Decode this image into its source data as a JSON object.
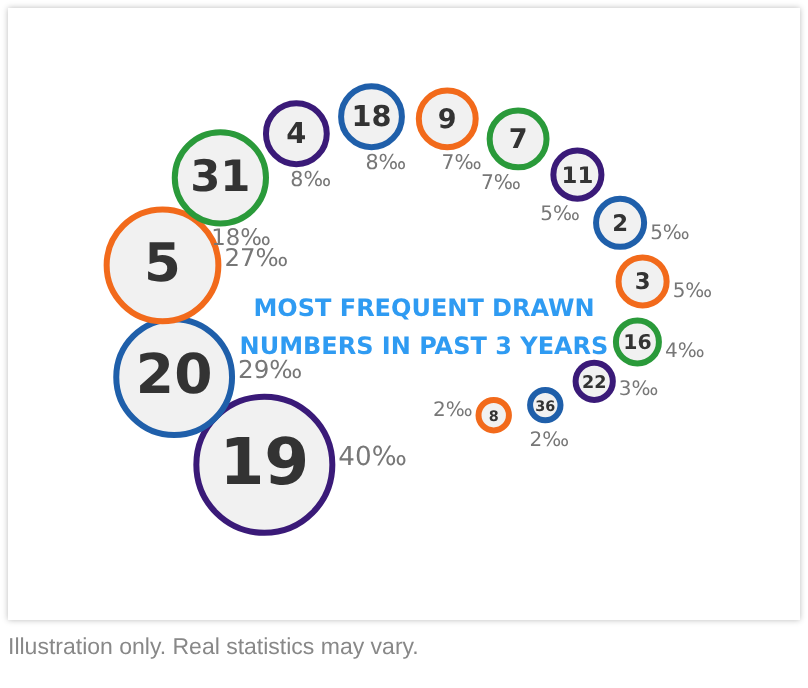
{
  "chart_data": {
    "type": "other",
    "title": "MOST FREQUENT DRAWN NUMBERS IN PAST 3 YEARS",
    "categories": [
      "19",
      "20",
      "5",
      "31",
      "4",
      "18",
      "9",
      "7",
      "11",
      "2",
      "3",
      "16",
      "22",
      "36",
      "8"
    ],
    "values": [
      40,
      29,
      27,
      18,
      8,
      8,
      7,
      7,
      5,
      5,
      5,
      4,
      3,
      2,
      2
    ],
    "value_labels": [
      "40‰",
      "29‰",
      "27‰",
      "18‰",
      "8‰",
      "8‰",
      "7‰",
      "7‰",
      "5‰",
      "5‰",
      "5‰",
      "4‰",
      "3‰",
      "2‰",
      "2‰"
    ],
    "colors": [
      "#3a1a78",
      "#1f5faa",
      "#f26a1b",
      "#2a9a3a",
      "#3a1a78",
      "#1f5faa",
      "#f26a1b",
      "#2a9a3a",
      "#3a1a78",
      "#1f5faa",
      "#f26a1b",
      "#2a9a3a",
      "#3a1a78",
      "#1f5faa",
      "#f26a1b"
    ],
    "annotations": [
      "Illustration only. Real statistics may vary."
    ]
  }
}
